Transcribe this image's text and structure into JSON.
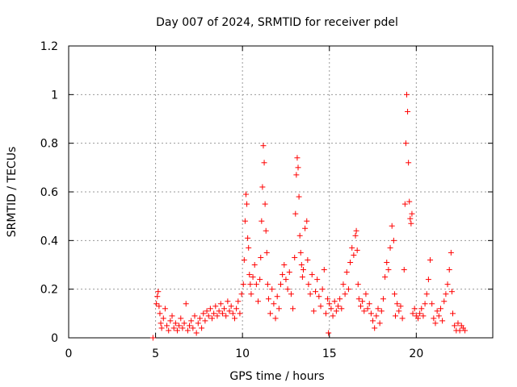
{
  "chart_data": {
    "type": "scatter",
    "title": "Day 007 of 2024, SRMTID for receiver pdel",
    "xlabel": "GPS time / hours",
    "ylabel": "SRMTID / TECUs",
    "xlim": [
      0,
      24.4
    ],
    "ylim": [
      0,
      1.2
    ],
    "xticks": [
      0,
      5,
      10,
      15,
      20
    ],
    "xtick_labels": [
      "0",
      "5",
      "10",
      "15",
      "20"
    ],
    "yticks": [
      0,
      0.2,
      0.4,
      0.6,
      0.8,
      1.0,
      1.2
    ],
    "ytick_labels": [
      "0",
      "0.2",
      "0.4",
      "0.6",
      "0.8",
      "1",
      "1.2"
    ],
    "grid": true,
    "marker": "+",
    "color": "#ff0000",
    "series": [
      {
        "name": "pdel SRMTID",
        "x": [
          4.85,
          5.05,
          5.1,
          5.15,
          5.2,
          5.25,
          5.3,
          5.35,
          5.45,
          5.55,
          5.65,
          5.75,
          5.85,
          5.95,
          6.05,
          6.15,
          6.25,
          6.35,
          6.45,
          6.55,
          6.65,
          6.75,
          6.85,
          6.95,
          7.05,
          7.15,
          7.25,
          7.35,
          7.45,
          7.55,
          7.65,
          7.75,
          7.85,
          7.95,
          8.05,
          8.15,
          8.25,
          8.35,
          8.45,
          8.55,
          8.65,
          8.75,
          8.85,
          8.95,
          9.05,
          9.15,
          9.25,
          9.35,
          9.45,
          9.55,
          9.65,
          9.75,
          9.85,
          9.95,
          10.05,
          10.1,
          10.15,
          10.2,
          10.25,
          10.3,
          10.35,
          10.4,
          10.45,
          10.5,
          10.6,
          10.7,
          10.8,
          10.9,
          11.0,
          11.05,
          11.1,
          11.15,
          11.2,
          11.25,
          11.3,
          11.35,
          11.4,
          11.45,
          11.5,
          11.6,
          11.7,
          11.8,
          11.9,
          12.0,
          12.1,
          12.2,
          12.3,
          12.4,
          12.5,
          12.6,
          12.7,
          12.8,
          12.9,
          13.0,
          13.05,
          13.1,
          13.15,
          13.2,
          13.25,
          13.3,
          13.35,
          13.4,
          13.45,
          13.5,
          13.6,
          13.7,
          13.75,
          13.8,
          13.9,
          14.0,
          14.1,
          14.2,
          14.3,
          14.4,
          14.5,
          14.6,
          14.7,
          14.8,
          14.9,
          14.95,
          15.0,
          15.1,
          15.2,
          15.3,
          15.4,
          15.5,
          15.6,
          15.7,
          15.8,
          15.9,
          16.0,
          16.1,
          16.2,
          16.3,
          16.4,
          16.5,
          16.55,
          16.6,
          16.65,
          16.7,
          16.8,
          16.9,
          17.0,
          17.1,
          17.2,
          17.3,
          17.4,
          17.5,
          17.6,
          17.7,
          17.8,
          17.9,
          18.0,
          18.1,
          18.2,
          18.3,
          18.4,
          18.5,
          18.6,
          18.7,
          18.75,
          18.8,
          18.9,
          19.0,
          19.1,
          19.2,
          19.3,
          19.35,
          19.4,
          19.45,
          19.5,
          19.55,
          19.6,
          19.65,
          19.7,
          19.75,
          19.8,
          19.9,
          20.0,
          20.1,
          20.2,
          20.3,
          20.4,
          20.5,
          20.6,
          20.7,
          20.8,
          20.9,
          21.0,
          21.1,
          21.2,
          21.3,
          21.4,
          21.5,
          21.6,
          21.7,
          21.8,
          21.9,
          22.0,
          22.05,
          22.1,
          22.2,
          22.3,
          22.4,
          22.5,
          22.6,
          22.7,
          22.8
        ],
        "y": [
          0.0,
          0.14,
          0.17,
          0.19,
          0.13,
          0.1,
          0.06,
          0.04,
          0.08,
          0.12,
          0.05,
          0.03,
          0.07,
          0.09,
          0.04,
          0.06,
          0.03,
          0.05,
          0.08,
          0.04,
          0.06,
          0.14,
          0.03,
          0.05,
          0.07,
          0.04,
          0.09,
          0.02,
          0.06,
          0.08,
          0.04,
          0.1,
          0.07,
          0.11,
          0.09,
          0.12,
          0.08,
          0.1,
          0.13,
          0.09,
          0.11,
          0.14,
          0.1,
          0.12,
          0.09,
          0.15,
          0.11,
          0.13,
          0.1,
          0.08,
          0.12,
          0.15,
          0.1,
          0.18,
          0.22,
          0.32,
          0.48,
          0.59,
          0.55,
          0.41,
          0.37,
          0.26,
          0.22,
          0.18,
          0.25,
          0.3,
          0.22,
          0.15,
          0.24,
          0.33,
          0.48,
          0.62,
          0.79,
          0.72,
          0.55,
          0.44,
          0.35,
          0.22,
          0.16,
          0.1,
          0.2,
          0.14,
          0.08,
          0.17,
          0.12,
          0.22,
          0.26,
          0.3,
          0.24,
          0.2,
          0.27,
          0.18,
          0.12,
          0.33,
          0.51,
          0.67,
          0.74,
          0.7,
          0.58,
          0.42,
          0.35,
          0.3,
          0.25,
          0.28,
          0.45,
          0.48,
          0.32,
          0.22,
          0.18,
          0.26,
          0.11,
          0.19,
          0.24,
          0.17,
          0.13,
          0.2,
          0.28,
          0.1,
          0.16,
          0.02,
          0.14,
          0.12,
          0.09,
          0.15,
          0.11,
          0.13,
          0.16,
          0.12,
          0.22,
          0.18,
          0.27,
          0.2,
          0.31,
          0.37,
          0.34,
          0.42,
          0.44,
          0.36,
          0.22,
          0.16,
          0.13,
          0.15,
          0.11,
          0.18,
          0.12,
          0.14,
          0.1,
          0.07,
          0.04,
          0.09,
          0.12,
          0.06,
          0.11,
          0.16,
          0.25,
          0.31,
          0.28,
          0.37,
          0.46,
          0.4,
          0.18,
          0.09,
          0.14,
          0.11,
          0.13,
          0.08,
          0.28,
          0.55,
          0.8,
          1.0,
          0.93,
          0.72,
          0.56,
          0.49,
          0.47,
          0.51,
          0.1,
          0.12,
          0.09,
          0.08,
          0.1,
          0.12,
          0.09,
          0.14,
          0.18,
          0.24,
          0.32,
          0.14,
          0.08,
          0.06,
          0.11,
          0.09,
          0.12,
          0.07,
          0.15,
          0.18,
          0.22,
          0.28,
          0.35,
          0.19,
          0.1,
          0.05,
          0.03,
          0.06,
          0.03,
          0.05,
          0.04,
          0.03
        ]
      }
    ]
  }
}
